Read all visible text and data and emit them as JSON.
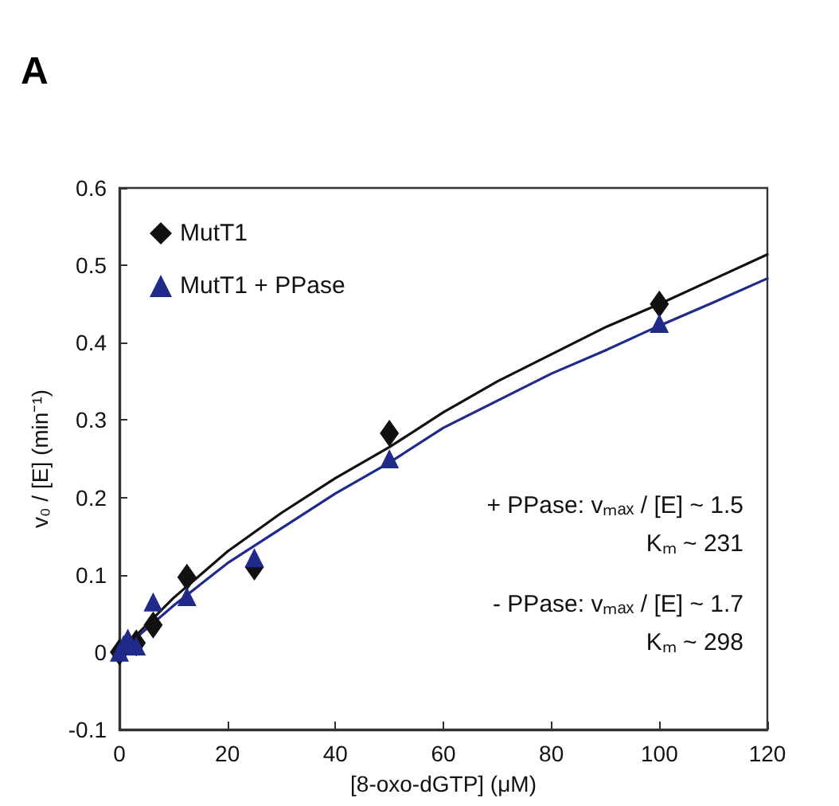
{
  "chart_data": {
    "type": "scatter",
    "title": "A",
    "xlabel": "[8-oxo-dGTP] (μM)",
    "ylabel": "v₀ / [E] (min⁻¹)",
    "xlim": [
      0,
      120
    ],
    "xticks": [
      0,
      20,
      40,
      60,
      80,
      100,
      120
    ],
    "ylim": [
      -0.1,
      0.6
    ],
    "yticks": [
      -0.1,
      0,
      0.1,
      0.2,
      0.3,
      0.4,
      0.5,
      0.6
    ],
    "grid": false,
    "legend": "top left",
    "series": [
      {
        "name": "MutT1",
        "marker": "diamond",
        "color": "#111111",
        "x": [
          0,
          0.78,
          1.56,
          3.125,
          6.25,
          12.5,
          25,
          50,
          100
        ],
        "values": [
          0,
          null,
          null,
          0.012,
          0.035,
          0.097,
          0.11,
          0.283,
          0.45
        ]
      },
      {
        "name": "MutT1 + PPase",
        "marker": "triangle",
        "color": "#1f2a8a",
        "x": [
          0,
          0.78,
          1.56,
          3.125,
          6.25,
          12.5,
          25,
          50,
          100
        ],
        "values": [
          0,
          0.01,
          0.018,
          0.008,
          0.065,
          0.072,
          0.122,
          0.25,
          0.425
        ]
      },
      {
        "type": "line",
        "marker": "none",
        "color": "#111111",
        "x": [
          0,
          10,
          20,
          30,
          40,
          50,
          60,
          70,
          80,
          90,
          100,
          110,
          120
        ],
        "values": [
          0,
          0.07,
          0.13,
          0.18,
          0.225,
          0.265,
          0.31,
          0.35,
          0.385,
          0.42,
          0.45,
          0.482,
          0.514
        ]
      },
      {
        "type": "line",
        "marker": "none",
        "color": "#1f2a8a",
        "x": [
          0,
          10,
          20,
          30,
          40,
          50,
          60,
          70,
          80,
          90,
          100,
          110,
          120
        ],
        "values": [
          0,
          0.06,
          0.115,
          0.16,
          0.205,
          0.245,
          0.29,
          0.325,
          0.36,
          0.39,
          0.422,
          0.452,
          0.483
        ]
      }
    ],
    "annotations": [
      "+ PPase: vₘₐₓ / [E] ~ 1.5",
      "Kₘ ~ 231",
      "- PPase: vₘₐₓ / [E] ~ 1.7",
      "Kₘ ~ 298"
    ]
  }
}
